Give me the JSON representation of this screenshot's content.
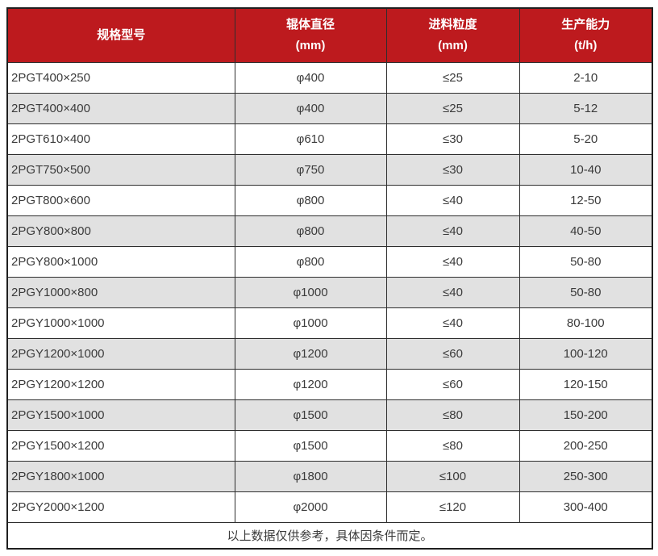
{
  "chart_data": {
    "type": "table",
    "columns": [
      {
        "line1": "规格型号",
        "line2": ""
      },
      {
        "line1": "辊体直径",
        "line2": "(mm)"
      },
      {
        "line1": "进料粒度",
        "line2": "(mm)"
      },
      {
        "line1": "生产能力",
        "line2": "(t/h)"
      }
    ],
    "rows": [
      [
        "2PGT400×250",
        "φ400",
        "≤25",
        "2-10"
      ],
      [
        "2PGT400×400",
        "φ400",
        "≤25",
        "5-12"
      ],
      [
        "2PGT610×400",
        "φ610",
        "≤30",
        "5-20"
      ],
      [
        "2PGT750×500",
        "φ750",
        "≤30",
        "10-40"
      ],
      [
        "2PGT800×600",
        "φ800",
        "≤40",
        "12-50"
      ],
      [
        "2PGY800×800",
        "φ800",
        "≤40",
        "40-50"
      ],
      [
        "2PGY800×1000",
        "φ800",
        "≤40",
        "50-80"
      ],
      [
        "2PGY1000×800",
        "φ1000",
        "≤40",
        "50-80"
      ],
      [
        "2PGY1000×1000",
        "φ1000",
        "≤40",
        "80-100"
      ],
      [
        "2PGY1200×1000",
        "φ1200",
        "≤60",
        "100-120"
      ],
      [
        "2PGY1200×1200",
        "φ1200",
        "≤60",
        "120-150"
      ],
      [
        "2PGY1500×1000",
        "φ1500",
        "≤80",
        "150-200"
      ],
      [
        "2PGY1500×1200",
        "φ1500",
        "≤80",
        "200-250"
      ],
      [
        "2PGY1800×1000",
        "φ1800",
        "≤100",
        "250-300"
      ],
      [
        "2PGY2000×1200",
        "φ2000",
        "≤120",
        "300-400"
      ]
    ],
    "footnote": "以上数据仅供参考，具体因条件而定。",
    "colors": {
      "header_bg": "#bd1a1e",
      "header_text": "#ffffff",
      "row_bg": "#ffffff",
      "row_alt_bg": "#e1e1e1",
      "border": "#2e2e2e",
      "text": "#3b3b3b"
    }
  }
}
